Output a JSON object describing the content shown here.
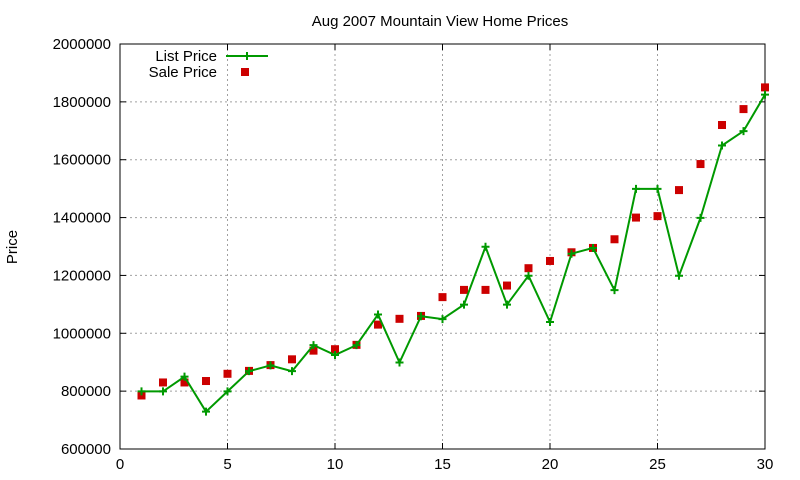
{
  "chart_data": {
    "type": "line",
    "title": "Aug 2007 Mountain View Home Prices",
    "xlabel": "",
    "ylabel": "Price",
    "xlim": [
      0,
      30
    ],
    "ylim": [
      600000,
      2000000
    ],
    "xticks": [
      0,
      5,
      10,
      15,
      20,
      25,
      30
    ],
    "yticks": [
      600000,
      800000,
      1000000,
      1200000,
      1400000,
      1600000,
      1800000,
      2000000
    ],
    "xtick_labels": [
      "0",
      "5",
      "10",
      "15",
      "20",
      "25",
      "30"
    ],
    "ytick_labels": [
      "600000",
      "800000",
      "1000000",
      "1200000",
      "1400000",
      "1600000",
      "1800000",
      "2000000"
    ],
    "grid": true,
    "legend_position": "top-left",
    "series": [
      {
        "name": "List Price",
        "style": "linespoints",
        "marker": "plus",
        "color": "#009900",
        "x": [
          1,
          2,
          3,
          4,
          5,
          6,
          7,
          8,
          9,
          10,
          11,
          12,
          13,
          14,
          15,
          16,
          17,
          18,
          19,
          20,
          21,
          22,
          23,
          24,
          25,
          26,
          27,
          28,
          29,
          30
        ],
        "y": [
          799000,
          799000,
          850000,
          729000,
          799000,
          869000,
          889000,
          869000,
          959000,
          925000,
          959000,
          1065000,
          899000,
          1059000,
          1049000,
          1099000,
          1299000,
          1099000,
          1199000,
          1039000,
          1275000,
          1295000,
          1149000,
          1499000,
          1499000,
          1199000,
          1399000,
          1649000,
          1699000,
          1825000
        ]
      },
      {
        "name": "Sale Price",
        "style": "points",
        "marker": "square",
        "color": "#cc0000",
        "x": [
          1,
          2,
          3,
          4,
          5,
          6,
          7,
          8,
          9,
          10,
          11,
          12,
          13,
          14,
          15,
          16,
          17,
          18,
          19,
          20,
          21,
          22,
          23,
          24,
          25,
          26,
          27,
          28,
          29,
          30
        ],
        "y": [
          785000,
          830000,
          830000,
          835000,
          860000,
          870000,
          890000,
          910000,
          940000,
          945000,
          960000,
          1030000,
          1050000,
          1060000,
          1125000,
          1150000,
          1150000,
          1165000,
          1225000,
          1250000,
          1280000,
          1295000,
          1325000,
          1400000,
          1405000,
          1495000,
          1585000,
          1720000,
          1775000,
          1850000
        ]
      }
    ]
  }
}
